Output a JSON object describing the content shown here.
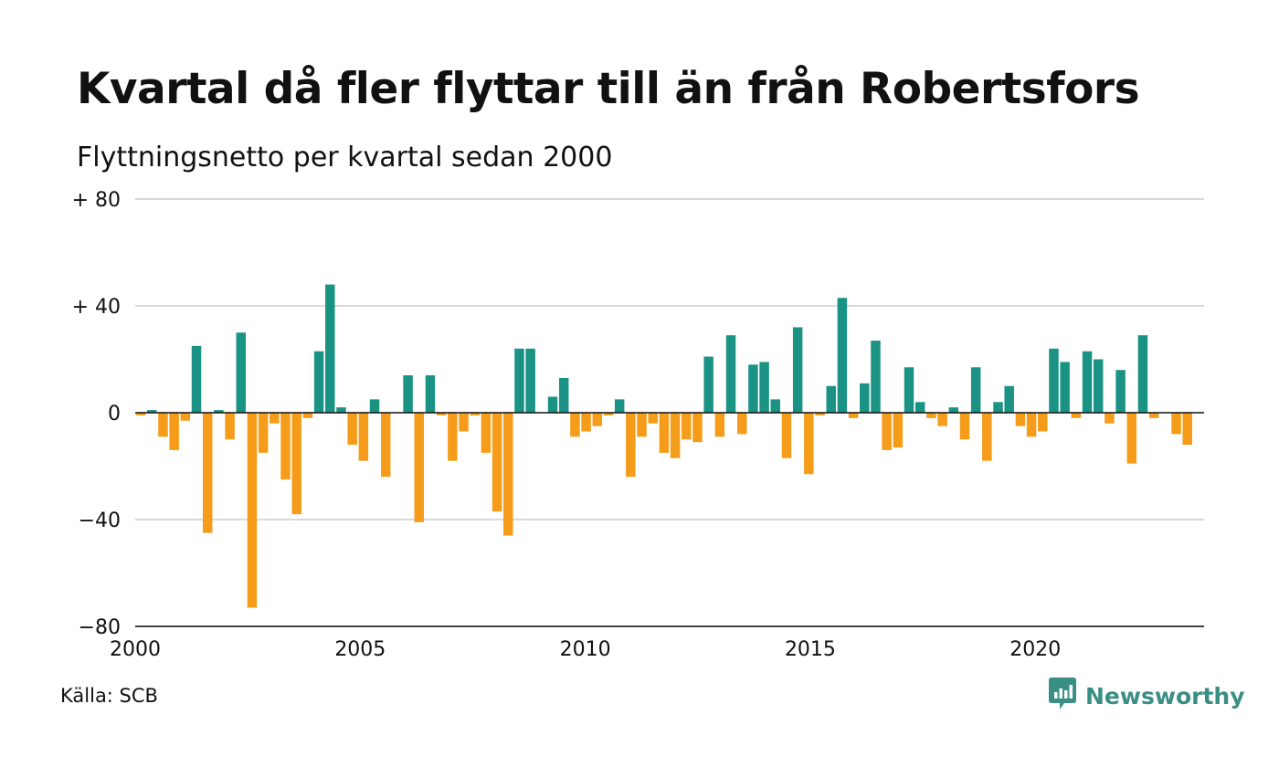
{
  "title": "Kvartal då fler flyttar till än från Robertsfors",
  "subtitle": "Flyttningsnetto per kvartal sedan 2000",
  "source": "Källa: SCB",
  "brand": {
    "name": "Newsworthy",
    "icon": "newsworthy-logo-icon",
    "color": "#3a8f84"
  },
  "colors": {
    "positive": "#1a9384",
    "negative": "#f59c1a",
    "grid": "#d9d9d9",
    "zero": "#111111"
  },
  "chart_data": {
    "type": "bar",
    "title": "Kvartal då fler flyttar till än från Robertsfors",
    "subtitle": "Flyttningsnetto per kvartal sedan 2000",
    "xlabel": "",
    "ylabel": "",
    "ylim": [
      -80,
      80
    ],
    "xlim": [
      2000.0,
      2023.75
    ],
    "grid": true,
    "y_ticks": [
      {
        "value": 80,
        "label": "+ 80"
      },
      {
        "value": 40,
        "label": "+ 40"
      },
      {
        "value": 0,
        "label": "0"
      },
      {
        "value": -40,
        "label": "−40"
      },
      {
        "value": -80,
        "label": "−80"
      }
    ],
    "x_ticks": [
      "2000",
      "2005",
      "2010",
      "2015",
      "2020"
    ],
    "categories": [
      "2000 K1",
      "2000 K2",
      "2000 K3",
      "2000 K4",
      "2001 K1",
      "2001 K2",
      "2001 K3",
      "2001 K4",
      "2002 K1",
      "2002 K2",
      "2002 K3",
      "2002 K4",
      "2003 K1",
      "2003 K2",
      "2003 K3",
      "2003 K4",
      "2004 K1",
      "2004 K2",
      "2004 K3",
      "2004 K4",
      "2005 K1",
      "2005 K2",
      "2005 K3",
      "2005 K4",
      "2006 K1",
      "2006 K2",
      "2006 K3",
      "2006 K4",
      "2007 K1",
      "2007 K2",
      "2007 K3",
      "2007 K4",
      "2008 K1",
      "2008 K2",
      "2008 K3",
      "2008 K4",
      "2009 K1",
      "2009 K2",
      "2009 K3",
      "2009 K4",
      "2010 K1",
      "2010 K2",
      "2010 K3",
      "2010 K4",
      "2011 K1",
      "2011 K2",
      "2011 K3",
      "2011 K4",
      "2012 K1",
      "2012 K2",
      "2012 K3",
      "2012 K4",
      "2013 K1",
      "2013 K2",
      "2013 K3",
      "2013 K4",
      "2014 K1",
      "2014 K2",
      "2014 K3",
      "2014 K4",
      "2015 K1",
      "2015 K2",
      "2015 K3",
      "2015 K4",
      "2016 K1",
      "2016 K2",
      "2016 K3",
      "2016 K4",
      "2017 K1",
      "2017 K2",
      "2017 K3",
      "2017 K4",
      "2018 K1",
      "2018 K2",
      "2018 K3",
      "2018 K4",
      "2019 K1",
      "2019 K2",
      "2019 K3",
      "2019 K4",
      "2020 K1",
      "2020 K2",
      "2020 K3",
      "2020 K4",
      "2021 K1",
      "2021 K2",
      "2021 K3",
      "2021 K4",
      "2022 K1",
      "2022 K2",
      "2022 K3",
      "2022 K4",
      "2023 K1",
      "2023 K2",
      "2023 K3",
      "2023 K4"
    ],
    "values": [
      -1,
      1,
      -9,
      -14,
      -3,
      25,
      -45,
      1,
      -10,
      30,
      -73,
      -15,
      -4,
      -25,
      -38,
      -2,
      23,
      48,
      2,
      -12,
      -18,
      5,
      -24,
      0,
      14,
      -41,
      14,
      -1,
      -18,
      -7,
      -1,
      -15,
      -37,
      -46,
      24,
      24,
      0,
      6,
      13,
      -9,
      -7,
      -5,
      -1,
      5,
      -24,
      -9,
      -4,
      -15,
      -17,
      -10,
      -11,
      21,
      -9,
      29,
      -8,
      18,
      19,
      5,
      -17,
      32,
      -23,
      -1,
      10,
      43,
      -2,
      11,
      27,
      -14,
      -13,
      17,
      4,
      -2,
      -5,
      2,
      -10,
      17,
      -18,
      4,
      10,
      -5,
      -9,
      -7,
      24,
      19,
      -2,
      23,
      20,
      -4,
      16,
      -19,
      29,
      -2,
      0,
      -8,
      -12,
      0
    ]
  }
}
